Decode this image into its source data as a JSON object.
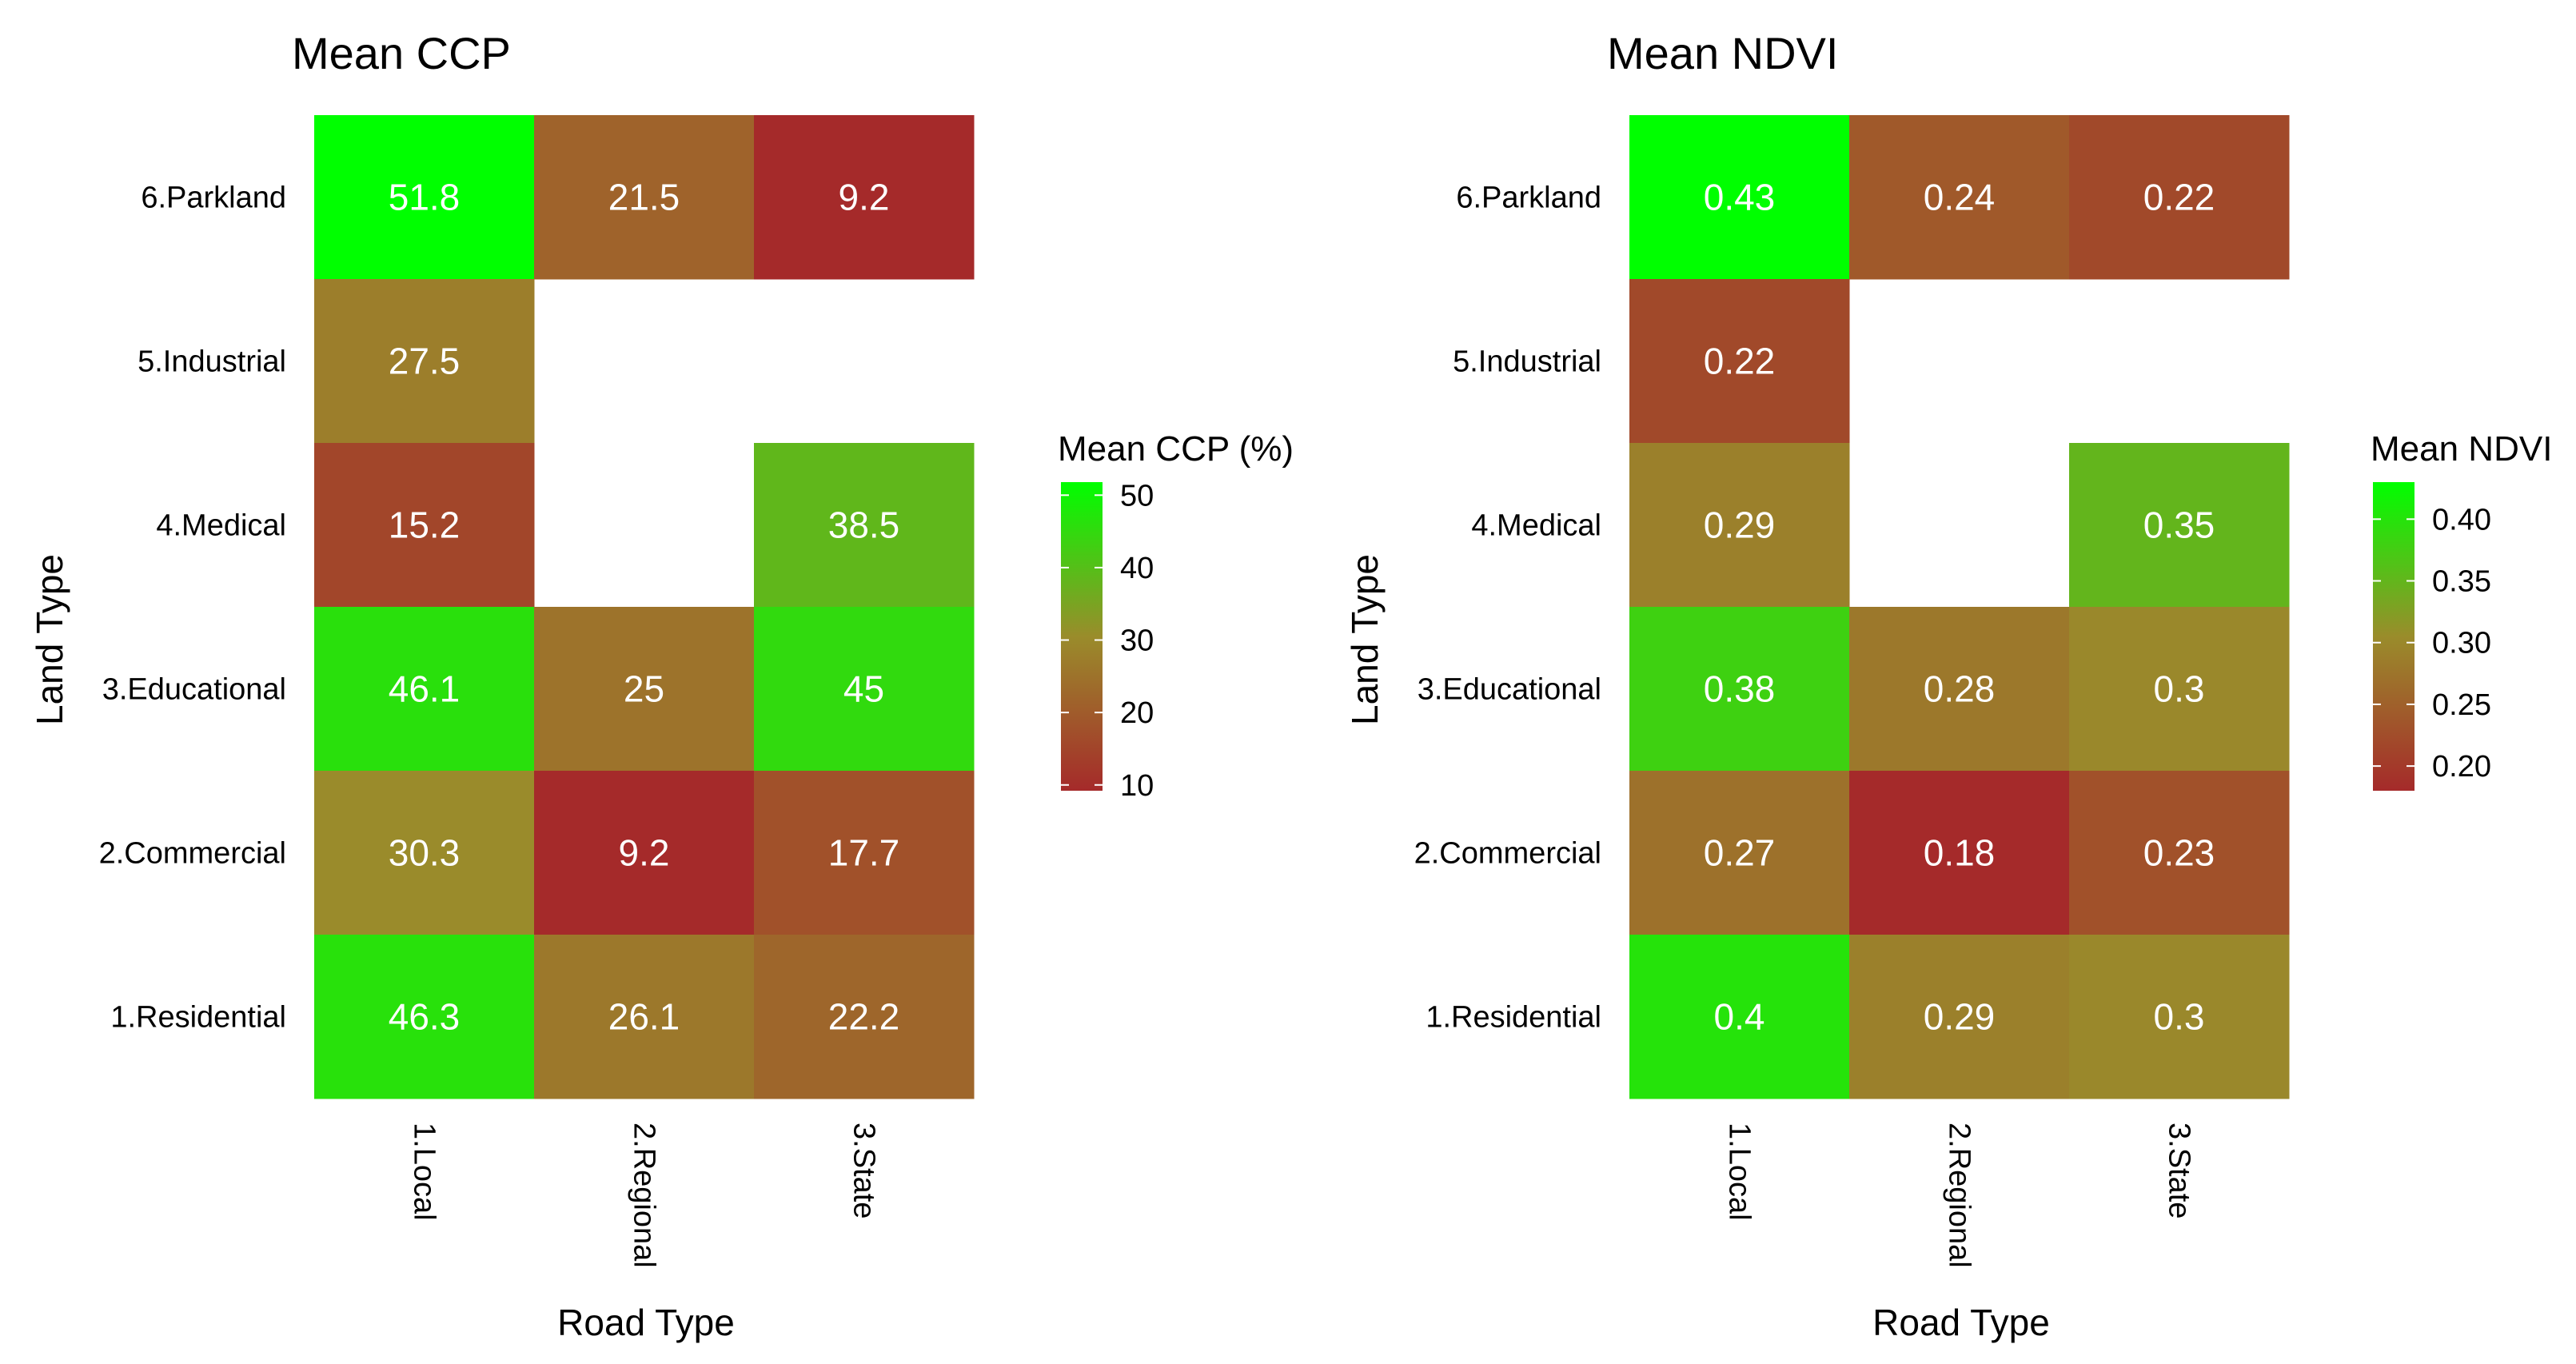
{
  "chart_data": [
    {
      "type": "heatmap",
      "title": "Mean CCP",
      "xlabel": "Road Type",
      "ylabel": "Land Type",
      "x_categories": [
        "1.Local",
        "2.Regional",
        "3.State"
      ],
      "y_categories": [
        "6.Parkland",
        "5.Industrial",
        "4.Medical",
        "3.Educational",
        "2.Commercial",
        "1.Residential"
      ],
      "values": [
        [
          51.8,
          21.5,
          9.2
        ],
        [
          27.5,
          null,
          null
        ],
        [
          15.2,
          null,
          38.5
        ],
        [
          46.1,
          25,
          45
        ],
        [
          30.3,
          9.2,
          17.7
        ],
        [
          46.3,
          26.1,
          22.2
        ]
      ],
      "value_labels": [
        [
          "51.8",
          "21.5",
          "9.2"
        ],
        [
          "27.5",
          "",
          ""
        ],
        [
          "15.2",
          "",
          "38.5"
        ],
        [
          "46.1",
          "25",
          "45"
        ],
        [
          "30.3",
          "9.2",
          "17.7"
        ],
        [
          "46.3",
          "26.1",
          "22.2"
        ]
      ],
      "legend": {
        "title": "Mean CCP (%)",
        "range": [
          9.2,
          51.8
        ],
        "ticks": [
          10,
          20,
          30,
          40,
          50
        ],
        "tick_labels": [
          "10",
          "20",
          "30",
          "40",
          "50"
        ],
        "low_color": "#a52a2a",
        "mid_color": "#9a8c2b",
        "high_color": "#00ff00"
      }
    },
    {
      "type": "heatmap",
      "title": "Mean NDVI",
      "xlabel": "Road Type",
      "ylabel": "Land Type",
      "x_categories": [
        "1.Local",
        "2.Regional",
        "3.State"
      ],
      "y_categories": [
        "6.Parkland",
        "5.Industrial",
        "4.Medical",
        "3.Educational",
        "2.Commercial",
        "1.Residential"
      ],
      "values": [
        [
          0.43,
          0.24,
          0.22
        ],
        [
          0.22,
          null,
          null
        ],
        [
          0.29,
          null,
          0.35
        ],
        [
          0.38,
          0.28,
          0.3
        ],
        [
          0.27,
          0.18,
          0.23
        ],
        [
          0.4,
          0.29,
          0.3
        ]
      ],
      "value_labels": [
        [
          "0.43",
          "0.24",
          "0.22"
        ],
        [
          "0.22",
          "",
          ""
        ],
        [
          "0.29",
          "",
          "0.35"
        ],
        [
          "0.38",
          "0.28",
          "0.3"
        ],
        [
          "0.27",
          "0.18",
          "0.23"
        ],
        [
          "0.4",
          "0.29",
          "0.3"
        ]
      ],
      "legend": {
        "title": "Mean NDVI",
        "range": [
          0.18,
          0.43
        ],
        "ticks": [
          0.2,
          0.25,
          0.3,
          0.35,
          0.4
        ],
        "tick_labels": [
          "0.20",
          "0.25",
          "0.30",
          "0.35",
          "0.40"
        ],
        "low_color": "#a52a2a",
        "mid_color": "#9a8c2b",
        "high_color": "#00ff00"
      }
    }
  ]
}
